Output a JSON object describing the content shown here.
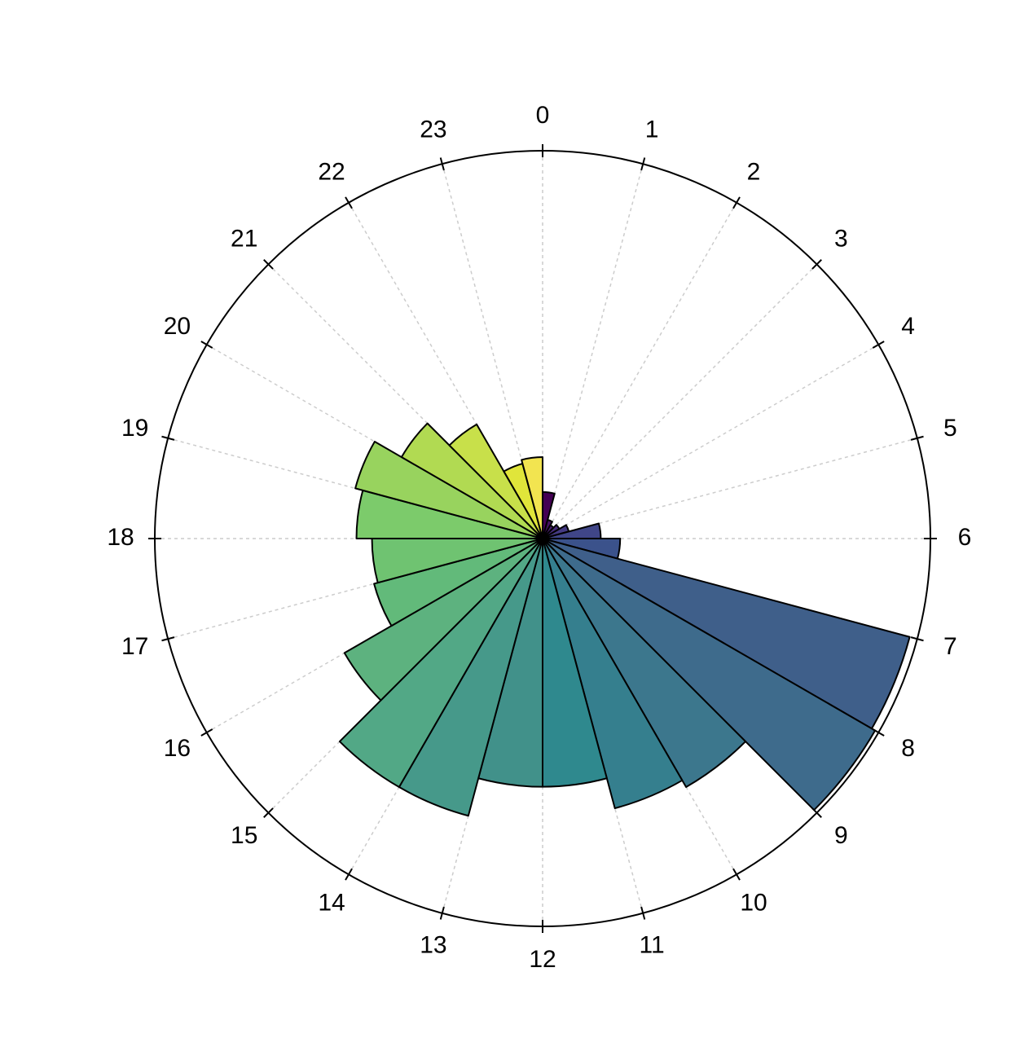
{
  "chart_data": {
    "type": "polar-bar",
    "categories": [
      "0",
      "1",
      "2",
      "3",
      "4",
      "5",
      "6",
      "7",
      "8",
      "9",
      "10",
      "11",
      "12",
      "13",
      "14",
      "15",
      "16",
      "17",
      "18",
      "19",
      "20",
      "21",
      "22",
      "23"
    ],
    "values": [
      12,
      5,
      4,
      5,
      7,
      15,
      20,
      98,
      99,
      74,
      72,
      64,
      64,
      74,
      74,
      59,
      45,
      44,
      48,
      50,
      42,
      34,
      20,
      21
    ],
    "colors": [
      "#440154",
      "#471063",
      "#481d6f",
      "#472c7a",
      "#443a83",
      "#404688",
      "#3b528b",
      "#3f5f8a",
      "#3e6b8c",
      "#3c778d",
      "#357f8e",
      "#2f898e",
      "#41918a",
      "#46998a",
      "#52a886",
      "#5db27f",
      "#62ba7a",
      "#6fc371",
      "#7ccb6b",
      "#98d35e",
      "#b1da52",
      "#c8e04a",
      "#e0e53a",
      "#f2e450"
    ],
    "ylim": [
      0,
      100
    ],
    "grid": true
  }
}
